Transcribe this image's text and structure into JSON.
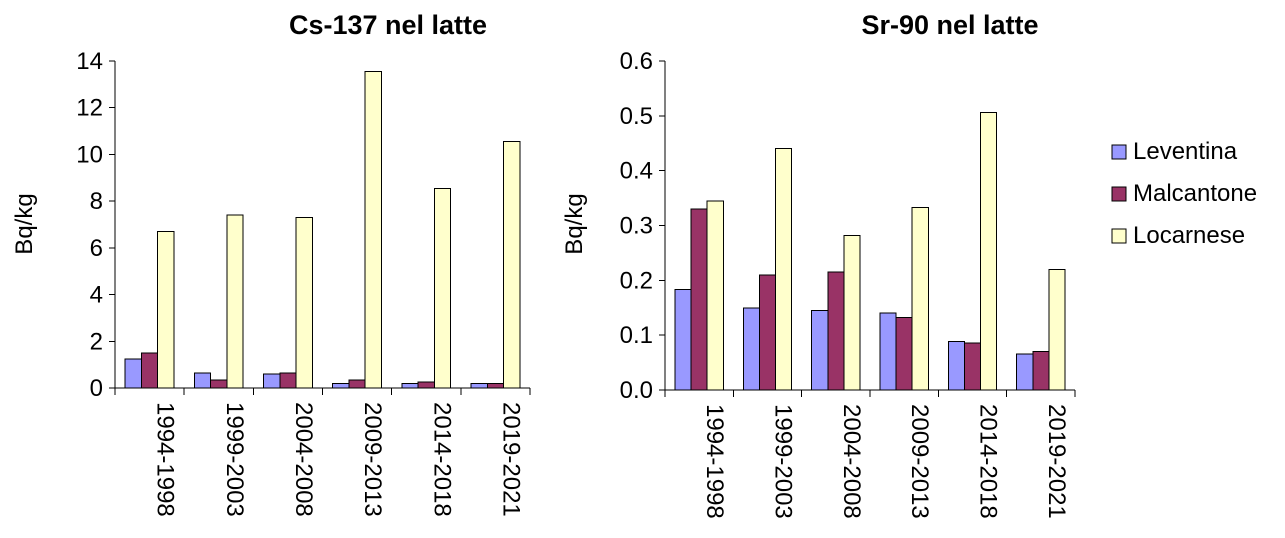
{
  "legend": {
    "placement": "right",
    "items": [
      {
        "name": "Leventina",
        "color": "#9999ff"
      },
      {
        "name": "Malcantone",
        "color": "#993366"
      },
      {
        "name": "Locarnese",
        "color": "#ffffcc"
      }
    ]
  },
  "chart_data": [
    {
      "type": "bar",
      "title": "Cs-137 nel latte",
      "xlabel": "",
      "ylabel": "Bq/kg",
      "ylim": [
        0,
        14
      ],
      "yticks": [
        "0",
        "2",
        "4",
        "6",
        "8",
        "10",
        "12",
        "14"
      ],
      "categories": [
        "1994-1998",
        "1999-2003",
        "2004-2008",
        "2009-2013",
        "2014-2018",
        "2019-2021"
      ],
      "series": [
        {
          "name": "Leventina",
          "values": [
            1.25,
            0.65,
            0.6,
            0.2,
            0.2,
            0.2
          ]
        },
        {
          "name": "Malcantone",
          "values": [
            1.5,
            0.35,
            0.65,
            0.35,
            0.25,
            0.2
          ]
        },
        {
          "name": "Locarnese",
          "values": [
            6.7,
            7.4,
            7.3,
            13.55,
            8.55,
            10.55
          ]
        }
      ],
      "grid": false
    },
    {
      "type": "bar",
      "title": "Sr-90 nel latte",
      "xlabel": "",
      "ylabel": "Bq/kg",
      "ylim": [
        0,
        0.6
      ],
      "yticks": [
        "0.0",
        "0.1",
        "0.2",
        "0.3",
        "0.4",
        "0.5",
        "0.6"
      ],
      "categories": [
        "1994-1998",
        "1999-2003",
        "2004-2008",
        "2009-2013",
        "2014-2018",
        "2019-2021"
      ],
      "series": [
        {
          "name": "Leventina",
          "values": [
            0.183,
            0.15,
            0.145,
            0.14,
            0.088,
            0.066
          ]
        },
        {
          "name": "Malcantone",
          "values": [
            0.33,
            0.21,
            0.215,
            0.132,
            0.086,
            0.07
          ]
        },
        {
          "name": "Locarnese",
          "values": [
            0.345,
            0.44,
            0.282,
            0.333,
            0.506,
            0.22
          ]
        }
      ],
      "grid": false
    }
  ]
}
